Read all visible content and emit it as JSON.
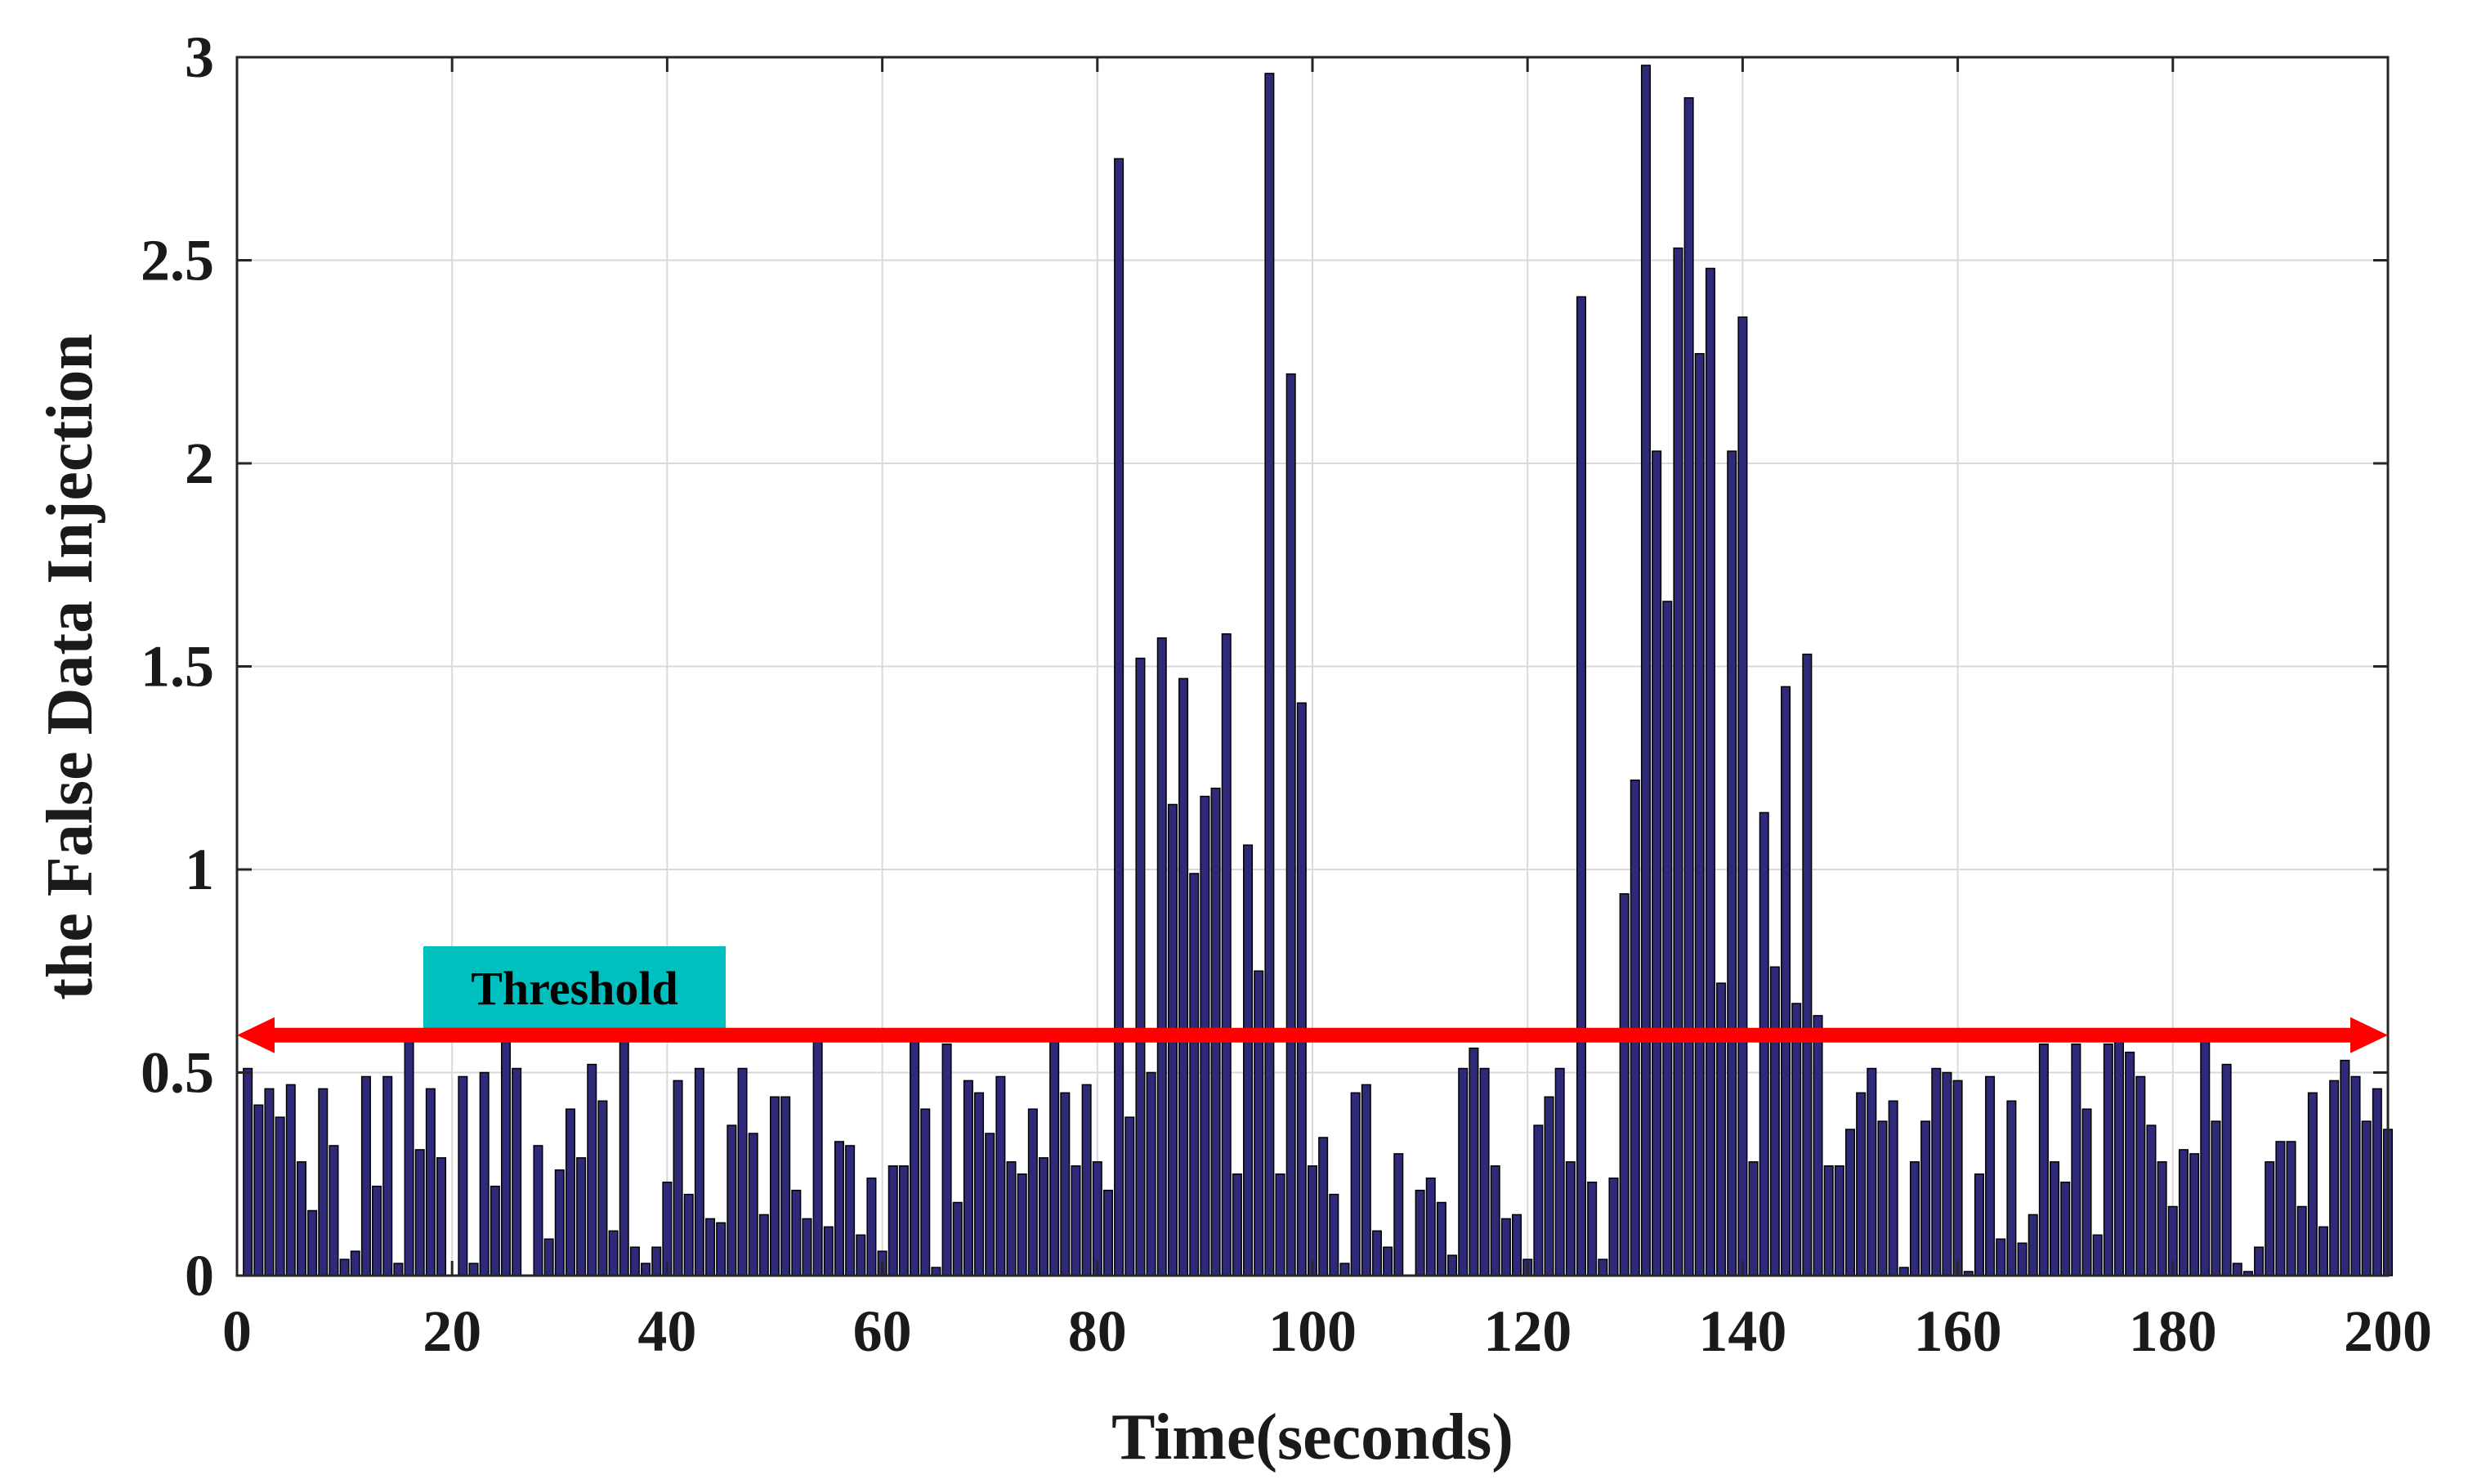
{
  "chart_data": {
    "type": "bar",
    "xlabel": "Time(seconds)",
    "ylabel": "the False Data Injection",
    "xlim": [
      0,
      200
    ],
    "ylim": [
      0,
      3
    ],
    "xticks": [
      "0",
      "20",
      "40",
      "60",
      "80",
      "100",
      "120",
      "140",
      "160",
      "180",
      "200"
    ],
    "yticks": [
      "0",
      "0.5",
      "1",
      "1.5",
      "2",
      "2.5",
      "3"
    ],
    "grid": true,
    "bar_color": "#2E2A78",
    "threshold": {
      "value": 0.6,
      "label": "Threshold",
      "color": "#FF0000",
      "label_bg": "#00BFBF"
    },
    "x": [
      1,
      2,
      3,
      4,
      5,
      6,
      7,
      8,
      9,
      10,
      11,
      12,
      13,
      14,
      15,
      16,
      17,
      18,
      19,
      20,
      21,
      22,
      23,
      24,
      25,
      26,
      27,
      28,
      29,
      30,
      31,
      32,
      33,
      34,
      35,
      36,
      37,
      38,
      39,
      40,
      41,
      42,
      43,
      44,
      45,
      46,
      47,
      48,
      49,
      50,
      51,
      52,
      53,
      54,
      55,
      56,
      57,
      58,
      59,
      60,
      61,
      62,
      63,
      64,
      65,
      66,
      67,
      68,
      69,
      70,
      71,
      72,
      73,
      74,
      75,
      76,
      77,
      78,
      79,
      80,
      81,
      82,
      83,
      84,
      85,
      86,
      87,
      88,
      89,
      90,
      91,
      92,
      93,
      94,
      95,
      96,
      97,
      98,
      99,
      100,
      101,
      102,
      103,
      104,
      105,
      106,
      107,
      108,
      109,
      110,
      111,
      112,
      113,
      114,
      115,
      116,
      117,
      118,
      119,
      120,
      121,
      122,
      123,
      124,
      125,
      126,
      127,
      128,
      129,
      130,
      131,
      132,
      133,
      134,
      135,
      136,
      137,
      138,
      139,
      140,
      141,
      142,
      143,
      144,
      145,
      146,
      147,
      148,
      149,
      150,
      151,
      152,
      153,
      154,
      155,
      156,
      157,
      158,
      159,
      160,
      161,
      162,
      163,
      164,
      165,
      166,
      167,
      168,
      169,
      170,
      171,
      172,
      173,
      174,
      175,
      176,
      177,
      178,
      179,
      180,
      181,
      182,
      183,
      184,
      185,
      186,
      187,
      188,
      189,
      190,
      191,
      192,
      193,
      194,
      195,
      196,
      197,
      198,
      199,
      200
    ],
    "values": [
      0.51,
      0.42,
      0.46,
      0.39,
      0.47,
      0.28,
      0.16,
      0.46,
      0.32,
      0.04,
      0.06,
      0.49,
      0.22,
      0.49,
      0.03,
      0.59,
      0.31,
      0.46,
      0.29,
      0.0,
      0.49,
      0.03,
      0.5,
      0.22,
      0.59,
      0.51,
      0.0,
      0.32,
      0.09,
      0.26,
      0.41,
      0.29,
      0.52,
      0.43,
      0.11,
      0.59,
      0.07,
      0.03,
      0.07,
      0.23,
      0.48,
      0.2,
      0.51,
      0.14,
      0.13,
      0.37,
      0.51,
      0.35,
      0.15,
      0.44,
      0.44,
      0.21,
      0.14,
      0.59,
      0.12,
      0.33,
      0.32,
      0.1,
      0.24,
      0.06,
      0.27,
      0.27,
      0.59,
      0.41,
      0.02,
      0.57,
      0.18,
      0.48,
      0.45,
      0.35,
      0.49,
      0.28,
      0.25,
      0.41,
      0.29,
      0.59,
      0.45,
      0.27,
      0.47,
      0.28,
      0.21,
      2.75,
      0.39,
      1.52,
      0.5,
      1.57,
      1.16,
      1.47,
      0.99,
      1.18,
      1.2,
      1.58,
      0.25,
      1.06,
      0.75,
      2.96,
      0.25,
      2.22,
      1.41,
      0.27,
      0.34,
      0.2,
      0.03,
      0.45,
      0.47,
      0.11,
      0.07,
      0.3,
      0.0,
      0.21,
      0.24,
      0.18,
      0.05,
      0.51,
      0.56,
      0.51,
      0.27,
      0.14,
      0.15,
      0.04,
      0.37,
      0.44,
      0.51,
      0.28,
      2.41,
      0.23,
      0.04,
      0.24,
      0.94,
      1.22,
      2.98,
      2.03,
      1.66,
      2.53,
      2.9,
      2.27,
      2.48,
      0.72,
      2.03,
      2.36,
      0.28,
      1.14,
      0.76,
      1.45,
      0.67,
      1.53,
      0.64,
      0.27,
      0.27,
      0.36,
      0.45,
      0.51,
      0.38,
      0.43,
      0.02,
      0.28,
      0.38,
      0.51,
      0.5,
      0.48,
      0.01,
      0.25,
      0.49,
      0.09,
      0.43,
      0.08,
      0.15,
      0.57,
      0.28,
      0.23,
      0.57,
      0.41,
      0.1,
      0.57,
      0.58,
      0.55,
      0.49,
      0.37,
      0.28,
      0.17,
      0.31,
      0.3,
      0.58,
      0.38,
      0.52,
      0.03,
      0.01,
      0.07,
      0.28,
      0.33,
      0.33,
      0.17,
      0.45,
      0.12,
      0.48,
      0.53,
      0.49,
      0.38,
      0.46,
      0.36
    ]
  }
}
